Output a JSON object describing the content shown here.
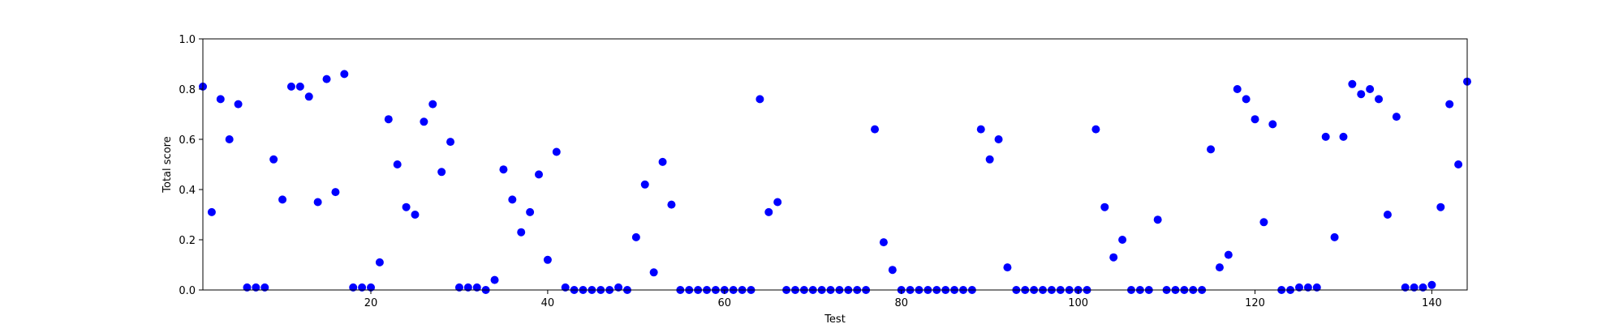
{
  "chart_data": {
    "type": "scatter",
    "title": "",
    "xlabel": "Test",
    "ylabel": "Total score",
    "xlim": [
      1,
      144
    ],
    "ylim": [
      0,
      1.0
    ],
    "xticks": [
      20,
      40,
      60,
      80,
      100,
      120,
      140
    ],
    "xtick_labels": [
      "20",
      "40",
      "60",
      "80",
      "100",
      "120",
      "140"
    ],
    "yticks": [
      0.0,
      0.2,
      0.4,
      0.6,
      0.8,
      1.0
    ],
    "ytick_labels": [
      "0.0",
      "0.2",
      "0.4",
      "0.6",
      "0.8",
      "1.0"
    ],
    "grid": false,
    "marker_color": "#0000ff",
    "series": [
      {
        "points": [
          [
            1,
            0.81
          ],
          [
            2,
            0.31
          ],
          [
            3,
            0.76
          ],
          [
            4,
            0.6
          ],
          [
            5,
            0.74
          ],
          [
            6,
            0.01
          ],
          [
            7,
            0.01
          ],
          [
            8,
            0.01
          ],
          [
            9,
            0.52
          ],
          [
            10,
            0.36
          ],
          [
            11,
            0.81
          ],
          [
            12,
            0.81
          ],
          [
            13,
            0.77
          ],
          [
            14,
            0.35
          ],
          [
            15,
            0.84
          ],
          [
            16,
            0.39
          ],
          [
            17,
            0.86
          ],
          [
            18,
            0.01
          ],
          [
            19,
            0.01
          ],
          [
            20,
            0.01
          ],
          [
            21,
            0.11
          ],
          [
            22,
            0.68
          ],
          [
            23,
            0.5
          ],
          [
            24,
            0.33
          ],
          [
            25,
            0.3
          ],
          [
            26,
            0.67
          ],
          [
            27,
            0.74
          ],
          [
            28,
            0.47
          ],
          [
            29,
            0.59
          ],
          [
            30,
            0.01
          ],
          [
            31,
            0.01
          ],
          [
            32,
            0.01
          ],
          [
            33,
            0.0
          ],
          [
            34,
            0.04
          ],
          [
            35,
            0.48
          ],
          [
            36,
            0.36
          ],
          [
            37,
            0.23
          ],
          [
            38,
            0.31
          ],
          [
            39,
            0.46
          ],
          [
            40,
            0.12
          ],
          [
            41,
            0.55
          ],
          [
            42,
            0.01
          ],
          [
            43,
            0.0
          ],
          [
            44,
            0.0
          ],
          [
            45,
            0.0
          ],
          [
            46,
            0.0
          ],
          [
            47,
            0.0
          ],
          [
            48,
            0.01
          ],
          [
            49,
            0.0
          ],
          [
            50,
            0.21
          ],
          [
            51,
            0.42
          ],
          [
            52,
            0.07
          ],
          [
            53,
            0.51
          ],
          [
            54,
            0.34
          ],
          [
            55,
            0.0
          ],
          [
            56,
            0.0
          ],
          [
            57,
            0.0
          ],
          [
            58,
            0.0
          ],
          [
            59,
            0.0
          ],
          [
            60,
            0.0
          ],
          [
            61,
            0.0
          ],
          [
            62,
            0.0
          ],
          [
            63,
            0.0
          ],
          [
            64,
            0.76
          ],
          [
            65,
            0.31
          ],
          [
            66,
            0.35
          ],
          [
            67,
            0.0
          ],
          [
            68,
            0.0
          ],
          [
            69,
            0.0
          ],
          [
            70,
            0.0
          ],
          [
            71,
            0.0
          ],
          [
            72,
            0.0
          ],
          [
            73,
            0.0
          ],
          [
            74,
            0.0
          ],
          [
            75,
            0.0
          ],
          [
            76,
            0.0
          ],
          [
            77,
            0.64
          ],
          [
            78,
            0.19
          ],
          [
            79,
            0.08
          ],
          [
            80,
            0.0
          ],
          [
            81,
            0.0
          ],
          [
            82,
            0.0
          ],
          [
            83,
            0.0
          ],
          [
            84,
            0.0
          ],
          [
            85,
            0.0
          ],
          [
            86,
            0.0
          ],
          [
            87,
            0.0
          ],
          [
            88,
            0.0
          ],
          [
            89,
            0.64
          ],
          [
            90,
            0.52
          ],
          [
            91,
            0.6
          ],
          [
            92,
            0.09
          ],
          [
            93,
            0.0
          ],
          [
            94,
            0.0
          ],
          [
            95,
            0.0
          ],
          [
            96,
            0.0
          ],
          [
            97,
            0.0
          ],
          [
            98,
            0.0
          ],
          [
            99,
            0.0
          ],
          [
            100,
            0.0
          ],
          [
            101,
            0.0
          ],
          [
            102,
            0.64
          ],
          [
            103,
            0.33
          ],
          [
            104,
            0.13
          ],
          [
            105,
            0.2
          ],
          [
            106,
            0.0
          ],
          [
            107,
            0.0
          ],
          [
            108,
            0.0
          ],
          [
            109,
            0.28
          ],
          [
            110,
            0.0
          ],
          [
            111,
            0.0
          ],
          [
            112,
            0.0
          ],
          [
            113,
            0.0
          ],
          [
            114,
            0.0
          ],
          [
            115,
            0.56
          ],
          [
            116,
            0.09
          ],
          [
            117,
            0.14
          ],
          [
            118,
            0.8
          ],
          [
            119,
            0.76
          ],
          [
            120,
            0.68
          ],
          [
            121,
            0.27
          ],
          [
            122,
            0.66
          ],
          [
            123,
            0.0
          ],
          [
            124,
            0.0
          ],
          [
            125,
            0.01
          ],
          [
            126,
            0.01
          ],
          [
            127,
            0.01
          ],
          [
            128,
            0.61
          ],
          [
            129,
            0.21
          ],
          [
            130,
            0.61
          ],
          [
            131,
            0.82
          ],
          [
            132,
            0.78
          ],
          [
            133,
            0.8
          ],
          [
            134,
            0.76
          ],
          [
            135,
            0.3
          ],
          [
            136,
            0.69
          ],
          [
            137,
            0.01
          ],
          [
            138,
            0.01
          ],
          [
            139,
            0.01
          ],
          [
            140,
            0.02
          ],
          [
            141,
            0.33
          ],
          [
            142,
            0.74
          ],
          [
            143,
            0.5
          ],
          [
            144,
            0.83
          ]
        ]
      }
    ]
  }
}
